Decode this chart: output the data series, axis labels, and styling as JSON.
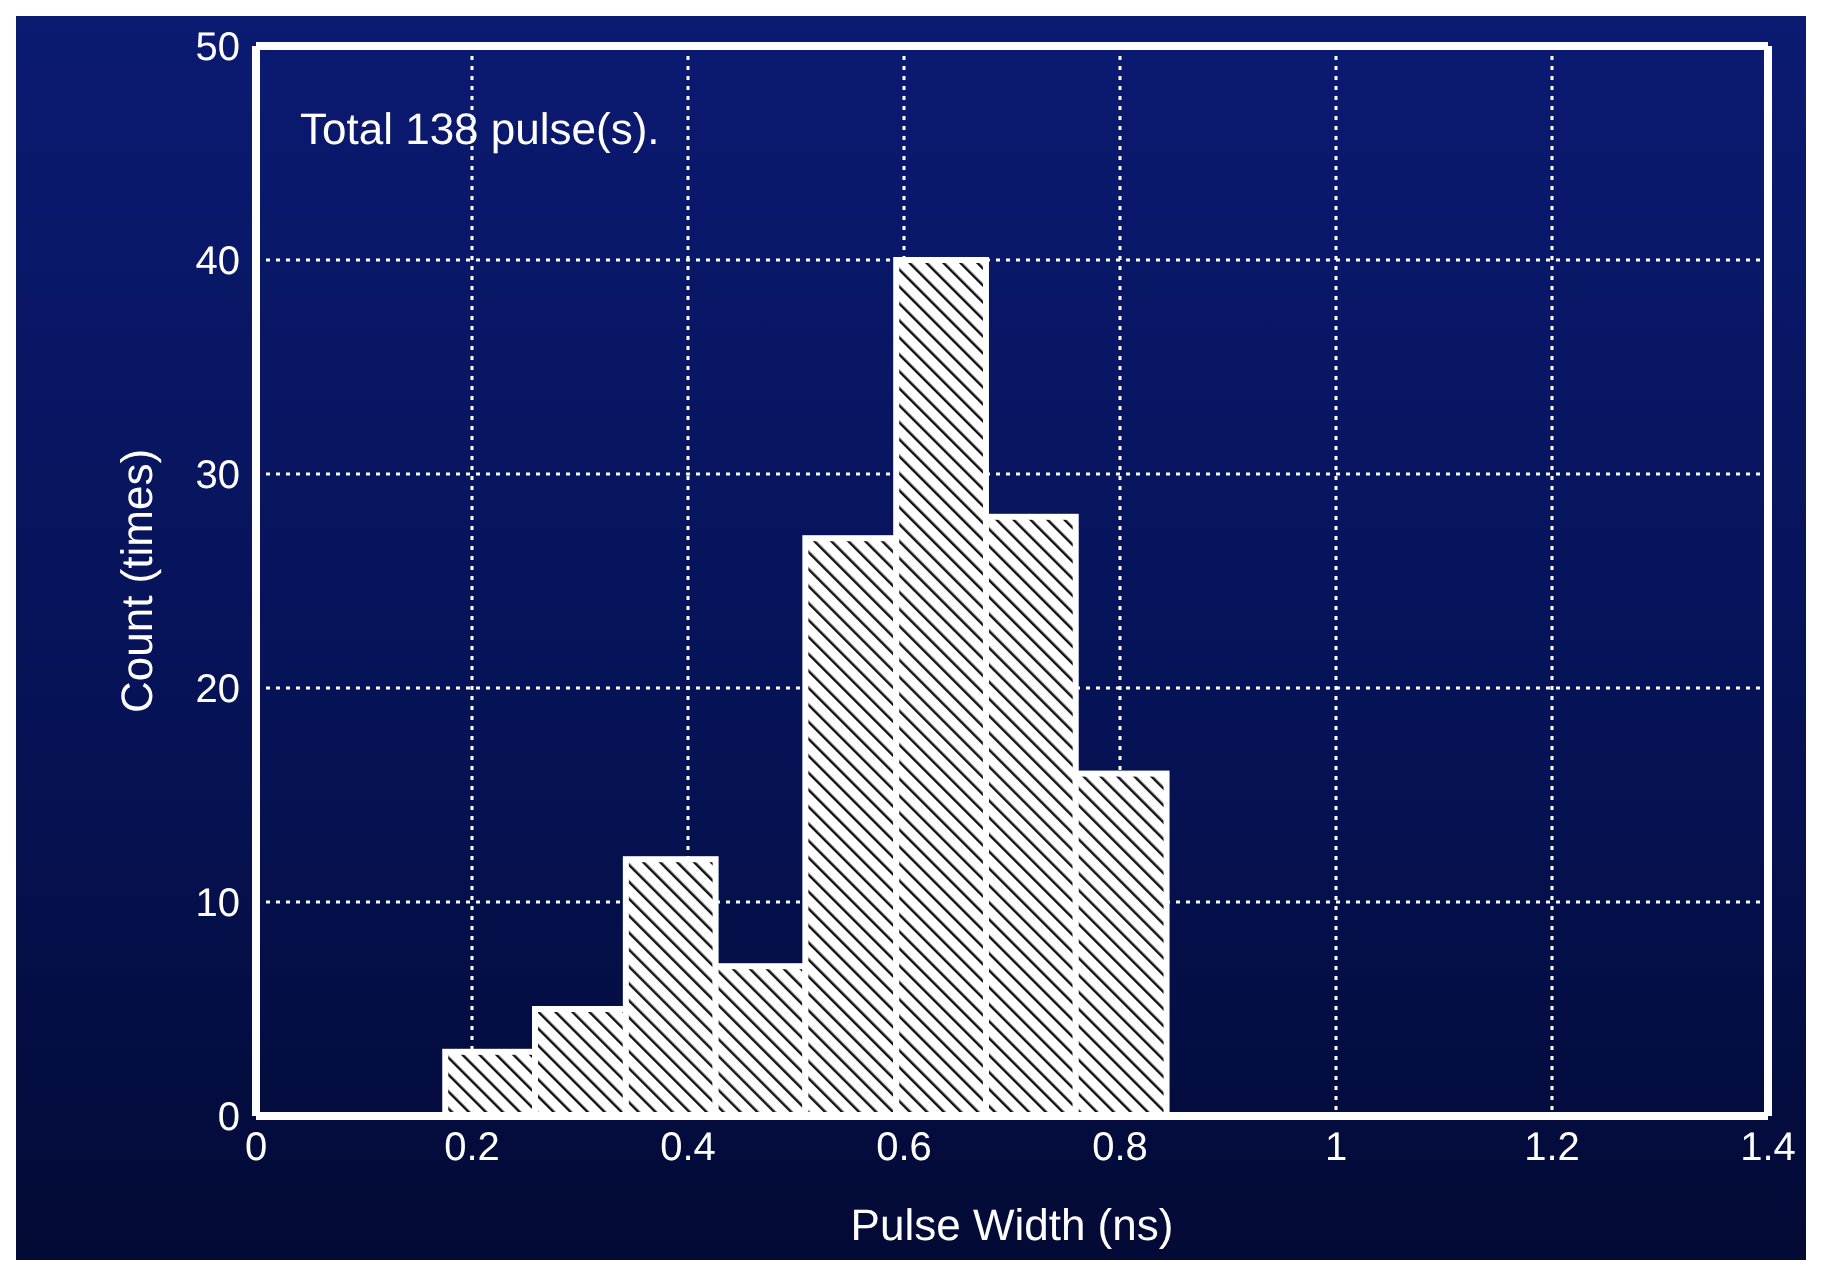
{
  "chart_data": {
    "type": "histogram",
    "bins": [
      0.175,
      0.258,
      0.342,
      0.425,
      0.508,
      0.592,
      0.675,
      0.758,
      0.842
    ],
    "values": [
      3,
      5,
      12,
      7,
      27,
      40,
      28,
      16
    ],
    "color": "#ffffff",
    "xlabel": "Pulse Width (ns)",
    "ylabel": "Count (times)",
    "xlim": [
      0,
      1.4
    ],
    "xticks": [
      0,
      0.2,
      0.4,
      0.6,
      0.8,
      1,
      1.2,
      1.4
    ],
    "ylim": [
      0,
      50
    ],
    "yticks": [
      0,
      10,
      20,
      30,
      40,
      50
    ],
    "grid": true,
    "annotations": [
      "Total 138 pulse(s)."
    ]
  }
}
